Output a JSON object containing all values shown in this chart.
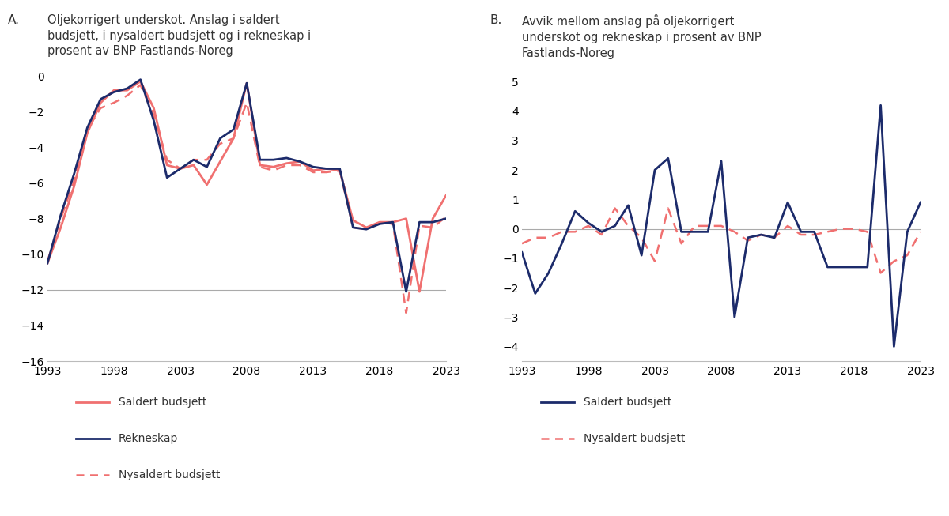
{
  "years": [
    1993,
    1994,
    1995,
    1996,
    1997,
    1998,
    1999,
    2000,
    2001,
    2002,
    2003,
    2004,
    2005,
    2006,
    2007,
    2008,
    2009,
    2010,
    2011,
    2012,
    2013,
    2014,
    2015,
    2016,
    2017,
    2018,
    2019,
    2020,
    2021,
    2022,
    2023
  ],
  "panel_a_saldert": [
    -10.5,
    -8.5,
    -6.2,
    -3.2,
    -1.5,
    -0.8,
    -0.8,
    -0.3,
    -1.8,
    -5.0,
    -5.2,
    -5.0,
    -6.1,
    -4.8,
    -3.5,
    -0.4,
    -5.0,
    -5.1,
    -4.9,
    -4.8,
    -5.3,
    -5.2,
    -5.3,
    -8.1,
    -8.5,
    -8.2,
    -8.2,
    -8.0,
    -12.1,
    -8.0,
    -6.7
  ],
  "panel_a_rekneskap": [
    -10.5,
    -7.8,
    -5.5,
    -2.9,
    -1.3,
    -0.9,
    -0.7,
    -0.2,
    -2.5,
    -5.7,
    -5.2,
    -4.7,
    -5.1,
    -3.5,
    -3.0,
    -0.4,
    -4.7,
    -4.7,
    -4.6,
    -4.8,
    -5.1,
    -5.2,
    -5.2,
    -8.5,
    -8.6,
    -8.3,
    -8.2,
    -12.1,
    -8.2,
    -8.2,
    -8.0
  ],
  "panel_a_nysaldert": [
    -10.4,
    -8.0,
    -5.9,
    -3.0,
    -1.8,
    -1.5,
    -1.1,
    -0.5,
    -2.2,
    -4.7,
    -5.2,
    -4.7,
    -4.7,
    -3.8,
    -3.5,
    -1.5,
    -5.1,
    -5.3,
    -5.0,
    -5.0,
    -5.4,
    -5.4,
    -5.3,
    -8.5,
    -8.6,
    -8.2,
    -8.3,
    -13.3,
    -8.4,
    -8.5,
    -7.9
  ],
  "panel_b_saldert": [
    -0.8,
    -2.2,
    -1.5,
    -0.5,
    0.6,
    0.2,
    -0.1,
    0.1,
    0.8,
    -0.9,
    2.0,
    2.4,
    -0.1,
    -0.1,
    -0.1,
    2.3,
    -3.0,
    -0.3,
    -0.2,
    -0.3,
    0.9,
    -0.1,
    -0.1,
    -1.3,
    -1.3,
    -1.3,
    -1.3,
    4.2,
    -4.0,
    -0.1,
    0.9
  ],
  "panel_b_nysaldert": [
    -0.5,
    -0.3,
    -0.3,
    -0.1,
    -0.1,
    0.1,
    -0.2,
    0.7,
    0.1,
    -0.3,
    -1.1,
    0.7,
    -0.5,
    0.1,
    0.1,
    0.1,
    -0.1,
    -0.4,
    -0.2,
    -0.3,
    0.1,
    -0.2,
    -0.2,
    -0.1,
    0.0,
    0.0,
    -0.1,
    -1.5,
    -1.1,
    -0.9,
    -0.1
  ],
  "color_saldert": "#F07070",
  "color_rekneskap": "#1C2B6B",
  "color_nysaldert": "#F07070",
  "panel_a_title_A": "A.",
  "panel_a_title_text": "Oljekorrigert underskot. Anslag i saldert\nbudsjett, i nysaldert budsjett og i rekneskap i\nprosent av BNP Fastlands-Noreg",
  "panel_b_title_A": "B.",
  "panel_b_title_text": "Avvik mellom anslag på oljekorrigert\nunderskot og rekneskap i prosent av BNP\nFastlands-Noreg",
  "panel_a_ylim": [
    -16,
    0.5
  ],
  "panel_a_yticks": [
    0,
    -2,
    -4,
    -6,
    -8,
    -10,
    -12,
    -14,
    -16
  ],
  "panel_b_ylim": [
    -4.5,
    5.5
  ],
  "panel_b_yticks": [
    -4,
    -3,
    -2,
    -1,
    0,
    1,
    2,
    3,
    4,
    5
  ],
  "xticks": [
    1993,
    1998,
    2003,
    2008,
    2013,
    2018,
    2023
  ],
  "legend_a": [
    "Saldert budsjett",
    "Rekneskap",
    "Nysaldert budsjett"
  ],
  "legend_b": [
    "Saldert budsjett",
    "Nysaldert budsjett"
  ],
  "background_color": "#FFFFFF",
  "ref_line_color": "#AAAAAA"
}
